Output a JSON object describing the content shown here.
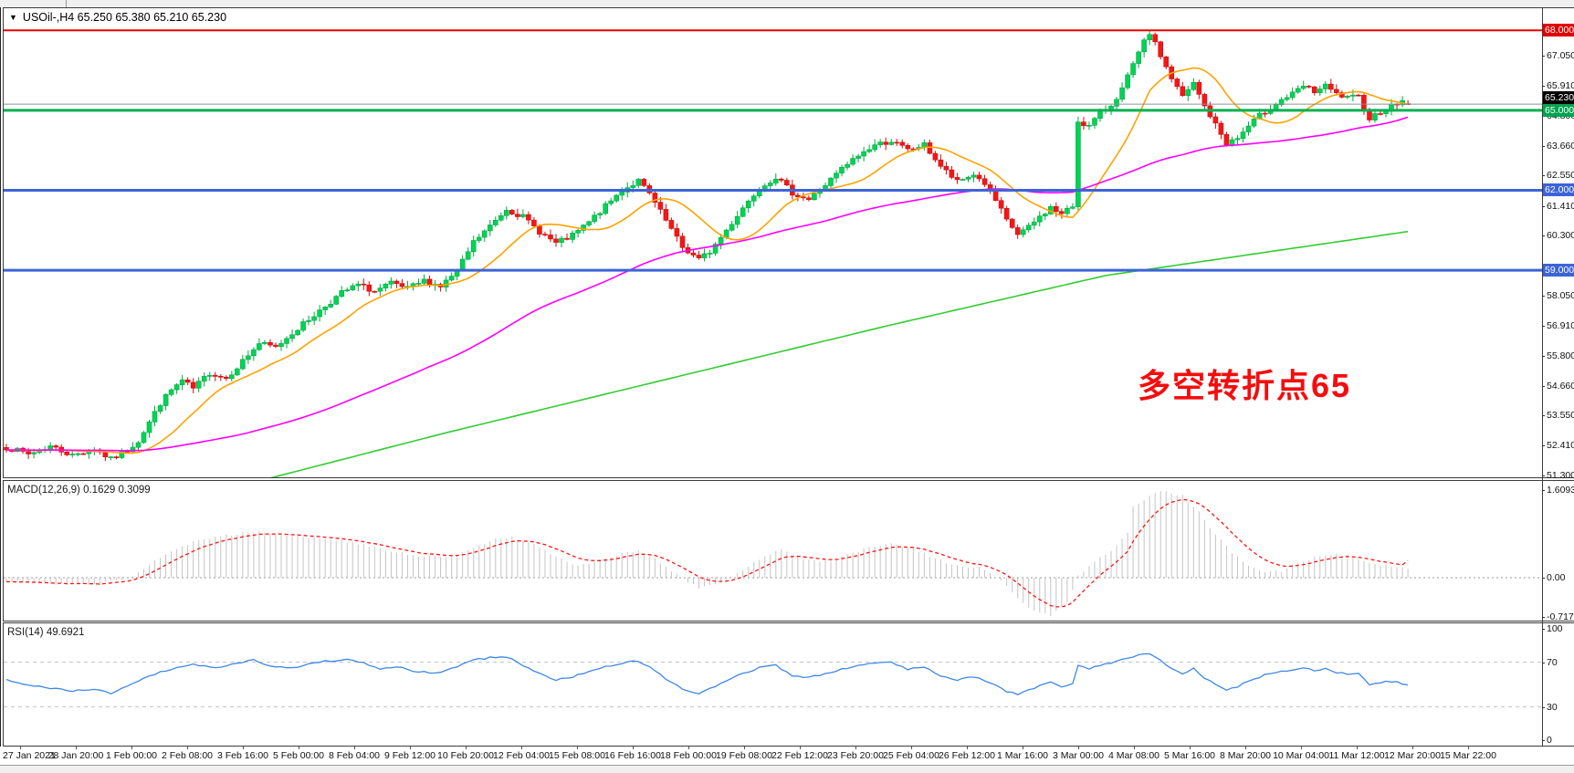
{
  "header": {
    "dropdown_icon": "▼",
    "title": "USOil-,H4",
    "ohlc": "65.250 65.380 65.210 65.230"
  },
  "annotation": {
    "text": "多空转折点65",
    "color": "#f50d0d"
  },
  "price_axis": {
    "badges": [
      {
        "label": "68.000",
        "price": 68.0,
        "bg": "#e00000",
        "bid": false
      },
      {
        "label": "65.230",
        "price": 65.23,
        "bg": "#000000",
        "bid": true
      },
      {
        "label": "65.000",
        "price": 65.0,
        "bg": "#00a44e",
        "bid": false
      },
      {
        "label": "62.000",
        "price": 62.0,
        "bg": "#3c64d8",
        "bid": false
      },
      {
        "label": "59.000",
        "price": 59.0,
        "bg": "#3c64d8",
        "bid": false
      }
    ]
  },
  "hlines": [
    {
      "price": 68.0,
      "color": "#ee0000",
      "width": 2
    },
    {
      "price": 65.0,
      "color": "#00b050",
      "width": 3
    },
    {
      "price": 65.23,
      "color": "#8c9099",
      "width": 1
    },
    {
      "price": 62.0,
      "color": "#3c64d8",
      "width": 3
    },
    {
      "price": 59.0,
      "color": "#3c64d8",
      "width": 3
    }
  ],
  "macd_panel": {
    "label": "MACD(12,26,9)",
    "main_value": "0.1629",
    "signal_value": "0.3099",
    "y_ticks": [
      {
        "v": 1.6093,
        "label": "1.6093"
      },
      {
        "v": 0,
        "label": "0.00"
      },
      {
        "v": -0.7172,
        "label": "-0.7172"
      }
    ]
  },
  "rsi_panel": {
    "label": "RSI(14)",
    "value": "49.6921",
    "y_ticks": [
      {
        "v": 100,
        "label": "100"
      },
      {
        "v": 70,
        "label": "70"
      },
      {
        "v": 30,
        "label": "30"
      },
      {
        "v": 0,
        "label": "0"
      }
    ]
  },
  "colors": {
    "up_fill": "#00d455",
    "up_stroke": "#00a843",
    "down_fill": "#f31717",
    "down_stroke": "#cf0e0e",
    "ma_fast": "#ffa200",
    "ma_mid": "#ff00ff",
    "ma_slow": "#33cc33",
    "macd_hist": "#c4c4c4",
    "macd_signal": "#ff1414",
    "rsi_line": "#3f87e6",
    "level_dash": "#c4c4c4",
    "zero_dot": "#9a9a9a"
  },
  "chart_data": [
    {
      "panel": "main",
      "type": "candlestick",
      "symbol": "USOil-",
      "timeframe": "H4",
      "bars": 256,
      "last_ohlc": {
        "open": 65.25,
        "high": 65.38,
        "low": 65.21,
        "close": 65.23
      },
      "bid": 65.23,
      "y_axis_ticks": [
        67.05,
        65.91,
        64.8,
        63.66,
        62.55,
        61.41,
        60.3,
        58.05,
        56.91,
        55.8,
        54.66,
        53.55,
        52.41,
        51.3
      ],
      "y_range": [
        51.17,
        68.86
      ],
      "horizontal_levels": [
        68.0,
        65.0,
        62.0,
        59.0
      ],
      "x_tick_labels": [
        "27 Jan 2021",
        "28 Jan 20:00",
        "1 Feb 00:00",
        "2 Feb 08:00",
        "3 Feb 16:00",
        "5 Feb 00:00",
        "8 Feb 04:00",
        "9 Feb 12:00",
        "10 Feb 20:00",
        "12 Feb 04:00",
        "15 Feb 08:00",
        "16 Feb 16:00",
        "18 Feb 00:00",
        "19 Feb 08:00",
        "22 Feb 12:00",
        "23 Feb 20:00",
        "25 Feb 04:00",
        "26 Feb 12:00",
        "1 Mar 16:00",
        "3 Mar 00:00",
        "4 Mar 08:00",
        "5 Mar 16:00",
        "8 Mar 20:00",
        "10 Mar 04:00",
        "11 Mar 12:00",
        "12 Mar 20:00",
        "15 Mar 22:00"
      ],
      "close_keyframes": [
        [
          0,
          52.35
        ],
        [
          4,
          52.1
        ],
        [
          8,
          52.4
        ],
        [
          12,
          52.05
        ],
        [
          16,
          52.3
        ],
        [
          19,
          51.9
        ],
        [
          22,
          52.25
        ],
        [
          24,
          52.6
        ],
        [
          26,
          53.3
        ],
        [
          28,
          54.0
        ],
        [
          30,
          54.5
        ],
        [
          32,
          54.85
        ],
        [
          34,
          54.55
        ],
        [
          37,
          55.15
        ],
        [
          40,
          54.95
        ],
        [
          43,
          55.6
        ],
        [
          46,
          56.25
        ],
        [
          49,
          56.1
        ],
        [
          52,
          56.65
        ],
        [
          55,
          57.15
        ],
        [
          58,
          57.65
        ],
        [
          61,
          58.15
        ],
        [
          64,
          58.45
        ],
        [
          67,
          58.2
        ],
        [
          70,
          58.5
        ],
        [
          73,
          58.3
        ],
        [
          76,
          58.6
        ],
        [
          79,
          58.4
        ],
        [
          82,
          58.95
        ],
        [
          85,
          60.05
        ],
        [
          88,
          60.65
        ],
        [
          91,
          61.3
        ],
        [
          94,
          61.0
        ],
        [
          97,
          60.45
        ],
        [
          100,
          60.0
        ],
        [
          103,
          60.3
        ],
        [
          106,
          60.8
        ],
        [
          109,
          61.4
        ],
        [
          112,
          62.0
        ],
        [
          115,
          62.35
        ],
        [
          117,
          61.85
        ],
        [
          120,
          60.85
        ],
        [
          123,
          59.85
        ],
        [
          126,
          59.4
        ],
        [
          128,
          59.7
        ],
        [
          131,
          60.5
        ],
        [
          134,
          61.35
        ],
        [
          137,
          62.1
        ],
        [
          140,
          62.5
        ],
        [
          143,
          61.9
        ],
        [
          146,
          61.65
        ],
        [
          149,
          62.2
        ],
        [
          152,
          62.8
        ],
        [
          155,
          63.3
        ],
        [
          158,
          63.7
        ],
        [
          161,
          63.85
        ],
        [
          164,
          63.5
        ],
        [
          167,
          63.7
        ],
        [
          170,
          62.9
        ],
        [
          173,
          62.3
        ],
        [
          176,
          62.6
        ],
        [
          178,
          62.25
        ],
        [
          180,
          61.6
        ],
        [
          182,
          60.85
        ],
        [
          184,
          60.35
        ],
        [
          186,
          60.6
        ],
        [
          188,
          61.0
        ],
        [
          190,
          61.35
        ],
        [
          192,
          61.1
        ],
        [
          194,
          61.4
        ],
        [
          195,
          64.6
        ],
        [
          197,
          64.4
        ],
        [
          199,
          64.9
        ],
        [
          201,
          65.2
        ],
        [
          203,
          65.8
        ],
        [
          205,
          66.7
        ],
        [
          207,
          67.55
        ],
        [
          208,
          67.9
        ],
        [
          210,
          67.05
        ],
        [
          212,
          66.2
        ],
        [
          214,
          65.5
        ],
        [
          216,
          66.0
        ],
        [
          218,
          65.15
        ],
        [
          220,
          64.45
        ],
        [
          222,
          63.75
        ],
        [
          224,
          63.95
        ],
        [
          226,
          64.4
        ],
        [
          228,
          64.8
        ],
        [
          230,
          65.1
        ],
        [
          232,
          65.4
        ],
        [
          234,
          65.6
        ],
        [
          236,
          65.9
        ],
        [
          238,
          65.7
        ],
        [
          240,
          65.9
        ],
        [
          242,
          65.6
        ],
        [
          244,
          65.45
        ],
        [
          246,
          65.5
        ],
        [
          248,
          64.7
        ],
        [
          250,
          64.95
        ],
        [
          252,
          65.15
        ],
        [
          254,
          65.35
        ],
        [
          255,
          65.23
        ]
      ],
      "overlays": [
        {
          "name": "ma-fast",
          "color_key": "ma_fast",
          "method": "sma",
          "period": 14
        },
        {
          "name": "ma-mid",
          "color_key": "ma_mid",
          "method": "sma",
          "period": 72
        },
        {
          "name": "ma-slow",
          "color_key": "ma_slow",
          "method": "keyframes",
          "keyframes": [
            [
              0,
              49.6
            ],
            [
              30,
              50.3
            ],
            [
              48,
              51.2
            ],
            [
              80,
              52.9
            ],
            [
              120,
              54.9
            ],
            [
              160,
              56.9
            ],
            [
              200,
              58.8
            ],
            [
              230,
              59.7
            ],
            [
              255,
              60.45
            ]
          ]
        }
      ]
    },
    {
      "panel": "macd",
      "type": "histogram+line",
      "params": "12,26,9",
      "current_main": 0.1629,
      "current_signal": 0.3099,
      "y_range": [
        -0.7172,
        1.6093
      ],
      "hist_keyframes": [
        [
          0,
          -0.06
        ],
        [
          8,
          -0.1
        ],
        [
          16,
          -0.13
        ],
        [
          22,
          -0.02
        ],
        [
          26,
          0.25
        ],
        [
          30,
          0.5
        ],
        [
          35,
          0.68
        ],
        [
          40,
          0.78
        ],
        [
          45,
          0.85
        ],
        [
          50,
          0.8
        ],
        [
          55,
          0.74
        ],
        [
          60,
          0.7
        ],
        [
          65,
          0.6
        ],
        [
          70,
          0.48
        ],
        [
          75,
          0.4
        ],
        [
          80,
          0.38
        ],
        [
          84,
          0.5
        ],
        [
          88,
          0.68
        ],
        [
          92,
          0.75
        ],
        [
          96,
          0.6
        ],
        [
          100,
          0.38
        ],
        [
          104,
          0.22
        ],
        [
          108,
          0.3
        ],
        [
          112,
          0.45
        ],
        [
          115,
          0.5
        ],
        [
          118,
          0.35
        ],
        [
          122,
          0.05
        ],
        [
          126,
          -0.18
        ],
        [
          130,
          -0.1
        ],
        [
          134,
          0.15
        ],
        [
          138,
          0.4
        ],
        [
          141,
          0.52
        ],
        [
          145,
          0.34
        ],
        [
          149,
          0.3
        ],
        [
          153,
          0.42
        ],
        [
          157,
          0.55
        ],
        [
          161,
          0.62
        ],
        [
          165,
          0.52
        ],
        [
          169,
          0.35
        ],
        [
          173,
          0.22
        ],
        [
          177,
          0.18
        ],
        [
          181,
          -0.05
        ],
        [
          184,
          -0.4
        ],
        [
          187,
          -0.6
        ],
        [
          190,
          -0.72
        ],
        [
          193,
          -0.45
        ],
        [
          195,
          0.05
        ],
        [
          198,
          0.3
        ],
        [
          201,
          0.5
        ],
        [
          204,
          0.8
        ],
        [
          205,
          1.3
        ],
        [
          208,
          1.5
        ],
        [
          211,
          1.6
        ],
        [
          214,
          1.5
        ],
        [
          217,
          1.2
        ],
        [
          220,
          0.8
        ],
        [
          223,
          0.45
        ],
        [
          226,
          0.22
        ],
        [
          229,
          0.1
        ],
        [
          232,
          0.13
        ],
        [
          235,
          0.27
        ],
        [
          238,
          0.37
        ],
        [
          241,
          0.44
        ],
        [
          244,
          0.42
        ],
        [
          247,
          0.32
        ],
        [
          250,
          0.24
        ],
        [
          253,
          0.19
        ],
        [
          255,
          0.1629
        ]
      ]
    },
    {
      "panel": "rsi",
      "type": "line",
      "params": "14",
      "current": 49.6921,
      "y_range": [
        0,
        100
      ],
      "levels": [
        70,
        30
      ],
      "keyframes": [
        [
          0,
          54
        ],
        [
          4,
          49
        ],
        [
          8,
          47
        ],
        [
          12,
          44
        ],
        [
          16,
          46
        ],
        [
          19,
          42
        ],
        [
          22,
          49
        ],
        [
          26,
          58
        ],
        [
          30,
          64
        ],
        [
          34,
          68
        ],
        [
          38,
          65
        ],
        [
          42,
          69
        ],
        [
          45,
          72
        ],
        [
          48,
          67
        ],
        [
          52,
          65
        ],
        [
          55,
          68
        ],
        [
          58,
          71
        ],
        [
          62,
          72
        ],
        [
          65,
          69
        ],
        [
          68,
          64
        ],
        [
          71,
          66
        ],
        [
          74,
          62
        ],
        [
          78,
          60
        ],
        [
          82,
          66
        ],
        [
          85,
          72
        ],
        [
          88,
          74
        ],
        [
          91,
          75
        ],
        [
          94,
          67
        ],
        [
          97,
          60
        ],
        [
          100,
          54
        ],
        [
          103,
          57
        ],
        [
          106,
          61
        ],
        [
          109,
          66
        ],
        [
          112,
          69
        ],
        [
          115,
          71
        ],
        [
          117,
          66
        ],
        [
          120,
          55
        ],
        [
          123,
          46
        ],
        [
          126,
          42
        ],
        [
          128,
          46
        ],
        [
          131,
          53
        ],
        [
          134,
          60
        ],
        [
          137,
          65
        ],
        [
          140,
          67
        ],
        [
          143,
          58
        ],
        [
          146,
          56
        ],
        [
          149,
          60
        ],
        [
          152,
          64
        ],
        [
          155,
          67
        ],
        [
          158,
          69
        ],
        [
          161,
          70
        ],
        [
          164,
          64
        ],
        [
          167,
          66
        ],
        [
          170,
          58
        ],
        [
          173,
          54
        ],
        [
          176,
          57
        ],
        [
          178,
          54
        ],
        [
          180,
          49
        ],
        [
          182,
          44
        ],
        [
          184,
          41
        ],
        [
          186,
          45
        ],
        [
          188,
          49
        ],
        [
          190,
          52
        ],
        [
          192,
          48
        ],
        [
          194,
          51
        ],
        [
          195,
          67
        ],
        [
          197,
          64
        ],
        [
          199,
          67
        ],
        [
          201,
          69
        ],
        [
          203,
          72
        ],
        [
          205,
          75
        ],
        [
          207,
          77
        ],
        [
          208,
          78
        ],
        [
          210,
          71
        ],
        [
          212,
          65
        ],
        [
          214,
          60
        ],
        [
          216,
          64
        ],
        [
          218,
          56
        ],
        [
          220,
          50
        ],
        [
          222,
          45
        ],
        [
          224,
          48
        ],
        [
          226,
          53
        ],
        [
          228,
          57
        ],
        [
          230,
          60
        ],
        [
          232,
          62
        ],
        [
          234,
          63
        ],
        [
          236,
          65
        ],
        [
          238,
          62
        ],
        [
          240,
          64
        ],
        [
          242,
          61
        ],
        [
          244,
          59
        ],
        [
          246,
          60
        ],
        [
          248,
          49
        ],
        [
          250,
          52
        ],
        [
          252,
          53
        ],
        [
          254,
          51
        ],
        [
          255,
          49.6921
        ]
      ]
    }
  ]
}
